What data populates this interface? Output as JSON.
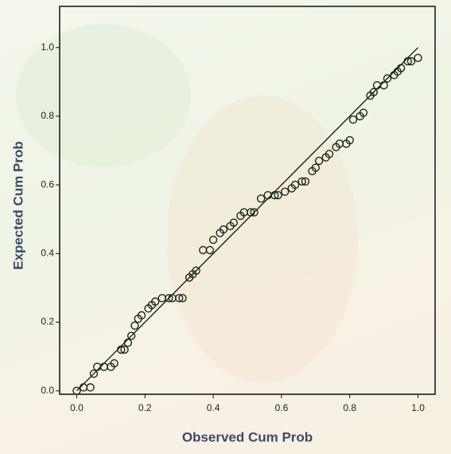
{
  "chart_data": {
    "type": "scatter",
    "x_label": "Observed Cum Prob",
    "y_label": "Expected Cum Prob",
    "xlim": [
      -0.05,
      1.05
    ],
    "ylim": [
      -0.01,
      1.12
    ],
    "xticks": [
      {
        "value": 0,
        "label": "0.0"
      },
      0.2,
      0.4,
      0.6,
      0.8,
      {
        "value": 1,
        "label": "1.0"
      }
    ],
    "yticks": [
      {
        "value": 0,
        "label": "0.0"
      },
      0.2,
      0.4,
      0.6,
      0.8,
      {
        "value": 1,
        "label": "1.0"
      }
    ],
    "color": "#1a2a1a",
    "reference_line": {
      "x": [
        0,
        1
      ],
      "y": [
        0,
        1
      ]
    },
    "x": [
      0,
      0.02,
      0.04,
      0.05,
      0.06,
      0.08,
      0.1,
      0.11,
      0.13,
      0.14,
      0.15,
      0.16,
      0.17,
      0.18,
      0.19,
      0.21,
      0.22,
      0.23,
      0.25,
      0.27,
      0.28,
      0.3,
      0.31,
      0.33,
      0.34,
      0.35,
      0.37,
      0.39,
      0.4,
      0.42,
      0.43,
      0.45,
      0.46,
      0.48,
      0.49,
      0.51,
      0.52,
      0.54,
      0.56,
      0.58,
      0.59,
      0.61,
      0.63,
      0.64,
      0.66,
      0.67,
      0.69,
      0.7,
      0.71,
      0.73,
      0.74,
      0.76,
      0.77,
      0.79,
      0.8,
      0.81,
      0.83,
      0.84,
      0.86,
      0.87,
      0.88,
      0.9,
      0.91,
      0.93,
      0.94,
      0.95,
      0.97,
      0.98,
      1.0
    ],
    "y": [
      0,
      0.01,
      0.01,
      0.05,
      0.07,
      0.07,
      0.07,
      0.08,
      0.12,
      0.12,
      0.14,
      0.16,
      0.19,
      0.21,
      0.22,
      0.24,
      0.25,
      0.26,
      0.27,
      0.27,
      0.27,
      0.27,
      0.27,
      0.33,
      0.34,
      0.35,
      0.41,
      0.41,
      0.44,
      0.46,
      0.47,
      0.48,
      0.49,
      0.51,
      0.52,
      0.52,
      0.52,
      0.56,
      0.57,
      0.57,
      0.57,
      0.58,
      0.59,
      0.6,
      0.61,
      0.61,
      0.64,
      0.65,
      0.67,
      0.68,
      0.69,
      0.71,
      0.72,
      0.72,
      0.73,
      0.79,
      0.8,
      0.81,
      0.86,
      0.87,
      0.89,
      0.89,
      0.91,
      0.92,
      0.93,
      0.94,
      0.96,
      0.96,
      0.97
    ]
  }
}
